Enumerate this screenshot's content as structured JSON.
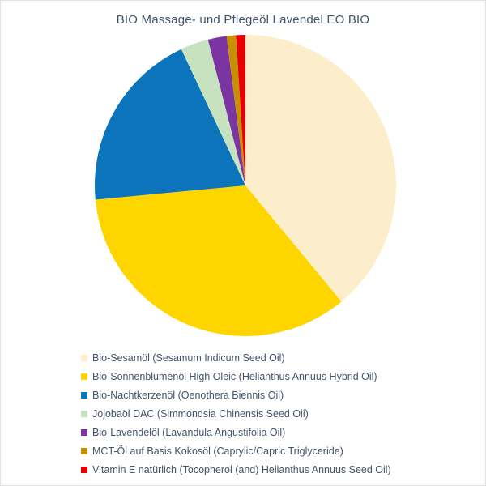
{
  "title": "BIO Massage- und Pflegeöl Lavendel EO BIO",
  "text_color": "#44546A",
  "background_color": "#FFFFFF",
  "chart_data": {
    "type": "pie",
    "title": "BIO Massage- und Pflegeöl Lavendel EO BIO",
    "start_angle_deg": 0,
    "direction": "clockwise",
    "legend_position": "bottom-left",
    "legend_marker": "square",
    "segments": [
      {
        "label": "Bio-Sesamöl (Sesamum Indicum Seed Oil)",
        "value_percent": 39.0,
        "color": "#FCEECB"
      },
      {
        "label": "Bio-Sonnenblumenöl High Oleic (Helianthus Annuus Hybrid Oil)",
        "value_percent": 34.5,
        "color": "#FFD500"
      },
      {
        "label": "Bio-Nachtkerzenöl (Oenothera Biennis Oil)",
        "value_percent": 19.5,
        "color": "#0B74BB"
      },
      {
        "label": "Jojobaöl DAC (Simmondsia Chinensis Seed Oil)",
        "value_percent": 3.0,
        "color": "#C6E2BF"
      },
      {
        "label": "Bio-Lavendelöl (Lavandula Angustifolia Oil)",
        "value_percent": 2.0,
        "color": "#7A35A3"
      },
      {
        "label": "MCT-Öl auf Basis Kokosöl (Caprylic/Capric Triglyceride)",
        "value_percent": 1.0,
        "color": "#C98F04"
      },
      {
        "label": "Vitamin E natürlich (Tocopherol (and) Helianthus Annuus Seed Oil)",
        "value_percent": 1.0,
        "color": "#E60000"
      }
    ]
  }
}
